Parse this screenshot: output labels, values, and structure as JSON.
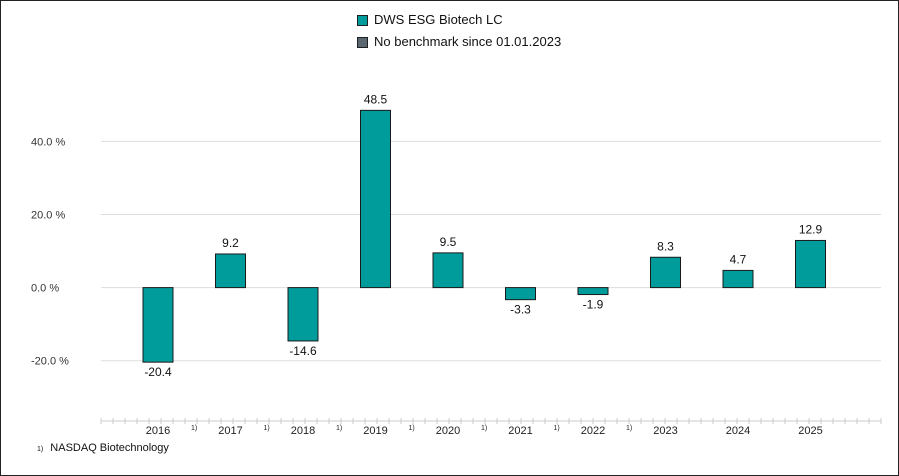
{
  "chart_data": {
    "type": "bar",
    "categories": [
      "2016",
      "2017",
      "2018",
      "2019",
      "2020",
      "2021",
      "2022",
      "2023",
      "2024",
      "2025"
    ],
    "footnote_marks": [
      "1)",
      "1)",
      "1)",
      "1)",
      "1)",
      "1)",
      "1)",
      "",
      "",
      ""
    ],
    "series": [
      {
        "name": "DWS ESG Biotech LC",
        "color": "#009c9c",
        "values": [
          -20.4,
          9.2,
          -14.6,
          48.5,
          9.5,
          -3.3,
          -1.9,
          8.3,
          4.7,
          12.9
        ]
      }
    ],
    "data_labels": [
      "-20.4",
      "9.2",
      "-14.6",
      "48.5",
      "9.5",
      "-3.3",
      "-1.9",
      "8.3",
      "4.7",
      "12.9"
    ],
    "legend": [
      {
        "label": "DWS ESG Biotech LC",
        "color": "#009c9c"
      },
      {
        "label": "No benchmark since 01.01.2023",
        "color": "#5a6670"
      }
    ],
    "legend_placement": "top-center",
    "yticks": [
      {
        "value": 40,
        "label": "40.0 %"
      },
      {
        "value": 20,
        "label": "20.0 %"
      },
      {
        "value": 0,
        "label": "0.0 %"
      },
      {
        "value": -20,
        "label": "-20.0 %"
      }
    ],
    "ylim": [
      -36.5,
      62
    ],
    "grid": true,
    "footnote": {
      "mark": "1)",
      "text": "NASDAQ Biotechnology"
    }
  }
}
